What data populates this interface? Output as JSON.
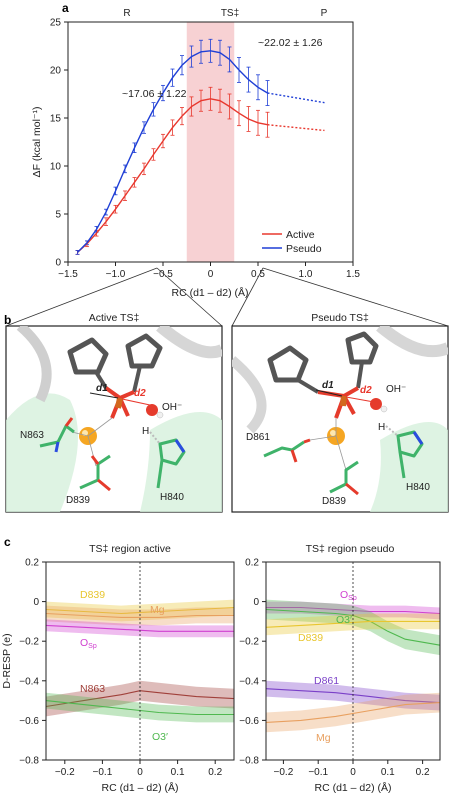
{
  "panels": {
    "a": "a",
    "b": "b",
    "c": "c"
  },
  "colors": {
    "active": "#e8382e",
    "pseudo": "#1f3fd6",
    "ts_band": "#f4c2c4",
    "carbon": "#3fb36a",
    "oxygen": "#e53b2c",
    "nitrogen": "#2b4ce0",
    "phosphorus": "#d2691e",
    "magnesium": "#f5a623",
    "backbone": "#555555",
    "d839": "#e8c630",
    "mg": "#e8a060",
    "osp": "#d040d0",
    "n863": "#a0403a",
    "o3": "#4fb84f",
    "d861": "#7a40c8"
  },
  "chart_data": [
    {
      "type": "line",
      "panel": "a",
      "title": "",
      "xlabel": "RC (d1 – d2) (Å)",
      "ylabel": "ΔF (kcal mol⁻¹)",
      "xlim": [
        -1.5,
        1.5
      ],
      "ylim": [
        0,
        25
      ],
      "xticks": [
        "−1.5",
        "−1.0",
        "−0.5",
        "0",
        "0.5",
        "1.0",
        "1.5"
      ],
      "yticks": [
        "0",
        "5",
        "10",
        "15",
        "20",
        "25"
      ],
      "top_labels": [
        "R",
        "TS‡",
        "P"
      ],
      "ts_band": [
        -0.25,
        0.25
      ],
      "annotations": [
        "~17.06 ± 1.22",
        "~22.02 ± 1.26"
      ],
      "legend_position": "bottom-right",
      "series": [
        {
          "name": "Active",
          "x": [
            -1.4,
            -1.3,
            -1.2,
            -1.1,
            -1.0,
            -0.9,
            -0.8,
            -0.7,
            -0.6,
            -0.5,
            -0.4,
            -0.3,
            -0.2,
            -0.1,
            0.0,
            0.1,
            0.2,
            0.3,
            0.4,
            0.5,
            0.6
          ],
          "y": [
            1.0,
            1.9,
            3.0,
            4.2,
            5.5,
            6.9,
            8.3,
            9.7,
            11.2,
            12.6,
            14.0,
            15.2,
            16.2,
            16.8,
            17.0,
            16.8,
            16.2,
            15.5,
            14.9,
            14.5,
            14.3
          ],
          "err": [
            0.2,
            0.3,
            0.3,
            0.4,
            0.4,
            0.5,
            0.5,
            0.6,
            0.6,
            0.7,
            0.8,
            0.9,
            1.0,
            1.1,
            1.2,
            1.2,
            1.3,
            1.3,
            1.3,
            1.3,
            1.3
          ],
          "dotted_x": [
            0.6,
            1.2
          ],
          "dotted_y": [
            14.3,
            13.7
          ]
        },
        {
          "name": "Pseudo",
          "x": [
            -1.4,
            -1.3,
            -1.2,
            -1.1,
            -1.0,
            -0.9,
            -0.8,
            -0.7,
            -0.6,
            -0.5,
            -0.4,
            -0.3,
            -0.2,
            -0.1,
            0.0,
            0.1,
            0.2,
            0.3,
            0.4,
            0.5,
            0.6
          ],
          "y": [
            1.0,
            2.0,
            3.4,
            5.2,
            7.4,
            9.7,
            11.9,
            14.0,
            15.9,
            17.6,
            19.2,
            20.5,
            21.4,
            21.9,
            22.0,
            21.8,
            21.1,
            20.0,
            19.0,
            18.2,
            17.6
          ],
          "err": [
            0.2,
            0.2,
            0.3,
            0.3,
            0.4,
            0.4,
            0.5,
            0.6,
            0.7,
            0.8,
            0.9,
            1.0,
            1.1,
            1.2,
            1.2,
            1.3,
            1.3,
            1.3,
            1.3,
            1.3,
            1.3
          ],
          "dotted_x": [
            0.6,
            1.2
          ],
          "dotted_y": [
            17.6,
            16.6
          ]
        }
      ]
    },
    {
      "type": "line",
      "panel": "c-left",
      "title": "TS‡ region active",
      "xlabel": "RC (d1 – d2) (Å)",
      "ylabel": "D-RESP (e)",
      "xlim": [
        -0.25,
        0.25
      ],
      "ylim": [
        -0.8,
        0.2
      ],
      "xticks": [
        "−0.2",
        "−0.1",
        "0",
        "0.1",
        "0.2"
      ],
      "yticks": [
        "0.2",
        "0",
        "−0.2",
        "−0.4",
        "−0.6",
        "−0.8"
      ],
      "series": [
        {
          "name": "D839",
          "colorKey": "d839",
          "x": [
            -0.25,
            -0.15,
            -0.05,
            0.05,
            0.15,
            0.25
          ],
          "y": [
            -0.04,
            -0.05,
            -0.06,
            -0.05,
            -0.04,
            -0.03
          ],
          "band": 0.04
        },
        {
          "name": "Mg",
          "colorKey": "mg",
          "x": [
            -0.25,
            -0.15,
            -0.05,
            0.05,
            0.15,
            0.25
          ],
          "y": [
            -0.06,
            -0.07,
            -0.08,
            -0.08,
            -0.07,
            -0.07
          ],
          "band": 0.04
        },
        {
          "name": "OSp",
          "colorKey": "osp",
          "x": [
            -0.25,
            -0.15,
            -0.05,
            0.05,
            0.15,
            0.25
          ],
          "y": [
            -0.12,
            -0.13,
            -0.14,
            -0.15,
            -0.15,
            -0.15
          ],
          "band": 0.03
        },
        {
          "name": "N863",
          "colorKey": "n863",
          "x": [
            -0.25,
            -0.15,
            -0.05,
            0.0,
            0.05,
            0.15,
            0.25
          ],
          "y": [
            -0.53,
            -0.5,
            -0.47,
            -0.45,
            -0.46,
            -0.48,
            -0.49
          ],
          "band": 0.05
        },
        {
          "name": "O3′",
          "colorKey": "o3",
          "x": [
            -0.25,
            -0.15,
            -0.05,
            0.0,
            0.05,
            0.15,
            0.25
          ],
          "y": [
            -0.5,
            -0.52,
            -0.54,
            -0.55,
            -0.56,
            -0.57,
            -0.57
          ],
          "band": 0.04
        }
      ]
    },
    {
      "type": "line",
      "panel": "c-right",
      "title": "TS‡ region pseudo",
      "xlabel": "RC (d1 – d2) (Å)",
      "ylabel": "",
      "xlim": [
        -0.25,
        0.25
      ],
      "ylim": [
        -0.8,
        0.2
      ],
      "xticks": [
        "−0.2",
        "−0.1",
        "0",
        "0.1",
        "0.2"
      ],
      "yticks": [
        "0.2",
        "0",
        "−0.2",
        "−0.4",
        "−0.6",
        "−0.8"
      ],
      "series": [
        {
          "name": "OSp",
          "colorKey": "osp",
          "x": [
            -0.25,
            -0.15,
            -0.05,
            0.05,
            0.15,
            0.25
          ],
          "y": [
            -0.03,
            -0.03,
            -0.04,
            -0.05,
            -0.05,
            -0.06
          ],
          "band": 0.03
        },
        {
          "name": "O3′",
          "colorKey": "o3",
          "x": [
            -0.25,
            -0.15,
            -0.05,
            0.0,
            0.05,
            0.1,
            0.15,
            0.25
          ],
          "y": [
            -0.04,
            -0.05,
            -0.06,
            -0.07,
            -0.1,
            -0.15,
            -0.19,
            -0.22
          ],
          "band": 0.05
        },
        {
          "name": "D839",
          "colorKey": "d839",
          "x": [
            -0.25,
            -0.15,
            -0.05,
            0.05,
            0.15,
            0.25
          ],
          "y": [
            -0.13,
            -0.12,
            -0.11,
            -0.1,
            -0.1,
            -0.1
          ],
          "band": 0.04
        },
        {
          "name": "D861",
          "colorKey": "d861",
          "x": [
            -0.25,
            -0.15,
            -0.05,
            0.05,
            0.15,
            0.25
          ],
          "y": [
            -0.44,
            -0.45,
            -0.46,
            -0.48,
            -0.5,
            -0.51
          ],
          "band": 0.04
        },
        {
          "name": "Mg",
          "colorKey": "mg",
          "x": [
            -0.25,
            -0.15,
            -0.05,
            0.05,
            0.15,
            0.25
          ],
          "y": [
            -0.61,
            -0.6,
            -0.58,
            -0.55,
            -0.52,
            -0.51
          ],
          "band": 0.05
        }
      ]
    }
  ],
  "structures": {
    "left": {
      "title": "Active TS‡",
      "labels": {
        "d1": "d1",
        "d2": "d2",
        "oh": "OH⁻",
        "h": "H",
        "n863": "N863",
        "d839": "D839",
        "h840": "H840"
      }
    },
    "right": {
      "title": "Pseudo TS‡",
      "labels": {
        "d1": "d1",
        "d2": "d2",
        "oh": "OH⁻",
        "h": "H",
        "d861": "D861",
        "d839": "D839",
        "h840": "H840"
      }
    }
  },
  "c_labels_left": {
    "d839": "D839",
    "mg": "Mg",
    "osp": "O",
    "osp_sub": "Sp",
    "n863": "N863",
    "o3": "O3′"
  },
  "c_labels_right": {
    "osp": "O",
    "osp_sub": "Sp",
    "o3": "O3′",
    "d839": "D839",
    "d861": "D861",
    "mg": "Mg"
  }
}
